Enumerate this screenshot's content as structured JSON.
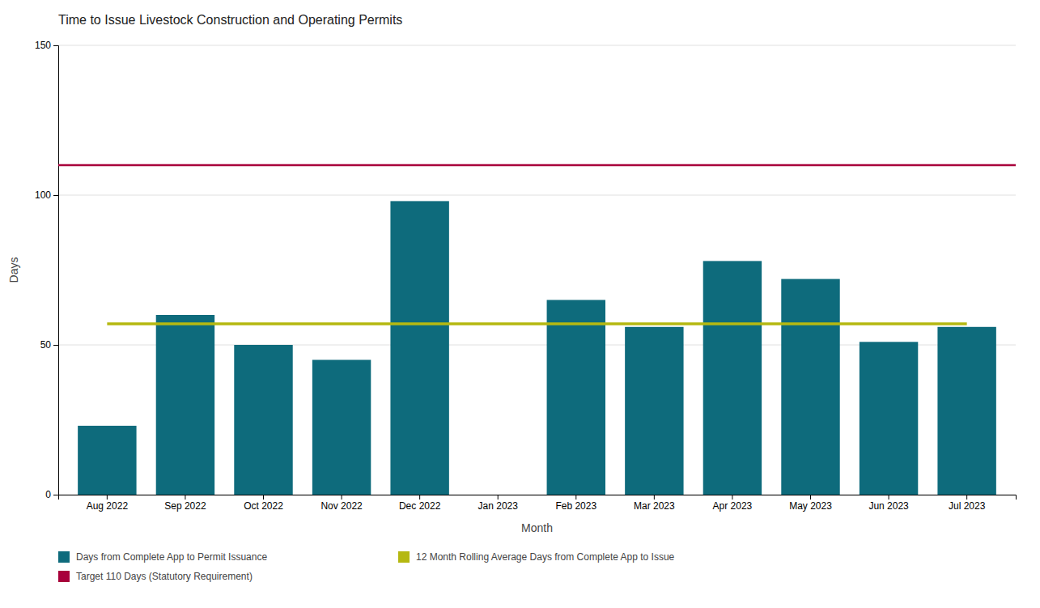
{
  "chart_data": {
    "type": "bar",
    "title": "Time to Issue Livestock Construction and Operating Permits",
    "x_label": "Month",
    "y_label": "Days",
    "categories": [
      "Aug 2022",
      "Sep 2022",
      "Oct 2022",
      "Nov 2022",
      "Dec 2022",
      "Jan 2023",
      "Feb 2023",
      "Mar 2023",
      "Apr 2023",
      "May 2023",
      "Jun 2023",
      "Jul 2023"
    ],
    "series": [
      {
        "name": "Days from Complete App to Permit Issuance",
        "type": "bar",
        "color": "#0e6b7c",
        "values": [
          23,
          60,
          50,
          45,
          98,
          0,
          65,
          56,
          78,
          72,
          51,
          56
        ]
      },
      {
        "name": "12 Month Rolling Average Days from Complete App to Issue",
        "type": "line",
        "color": "#b5b811",
        "values": [
          57,
          57,
          57,
          57,
          57,
          57,
          57,
          57,
          57,
          57,
          57,
          57
        ]
      }
    ],
    "target": {
      "name": "Target 110 Days (Statutory Requirement)",
      "color": "#a8003b",
      "value": 110
    },
    "ylim": [
      0,
      150
    ],
    "yticks": [
      0,
      50,
      100,
      150
    ],
    "grid": true,
    "legend": "bottom"
  }
}
